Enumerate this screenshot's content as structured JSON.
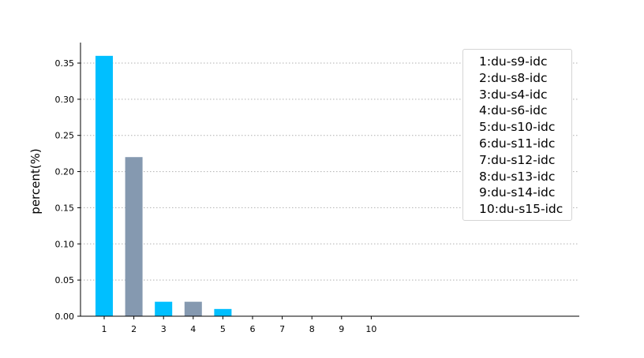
{
  "chart_data": {
    "type": "bar",
    "title": "",
    "xlabel": "",
    "ylabel": "percent(%)",
    "categories": [
      "1",
      "2",
      "3",
      "4",
      "5",
      "6",
      "7",
      "8",
      "9",
      "10"
    ],
    "values": [
      0.36,
      0.22,
      0.02,
      0.02,
      0.01,
      0,
      0,
      0,
      0,
      0
    ],
    "bar_colors": [
      "#00bfff",
      "#8599b0",
      "#00bfff",
      "#8599b0",
      "#00bfff",
      "#8599b0",
      "#00bfff",
      "#8599b0",
      "#00bfff",
      "#8599b0"
    ],
    "ylim": [
      0,
      0.38
    ],
    "yticks": [
      "0.00",
      "0.05",
      "0.10",
      "0.15",
      "0.20",
      "0.25",
      "0.30",
      "0.35"
    ],
    "grid": "horizontal dotted",
    "legend_placement": "top-right",
    "legend": [
      "1:du-s9-idc",
      "2:du-s8-idc",
      "3:du-s4-idc",
      "4:du-s6-idc",
      "5:du-s10-idc",
      "6:du-s11-idc",
      "7:du-s12-idc",
      "8:du-s13-idc",
      "9:du-s14-idc",
      "10:du-s15-idc"
    ]
  }
}
